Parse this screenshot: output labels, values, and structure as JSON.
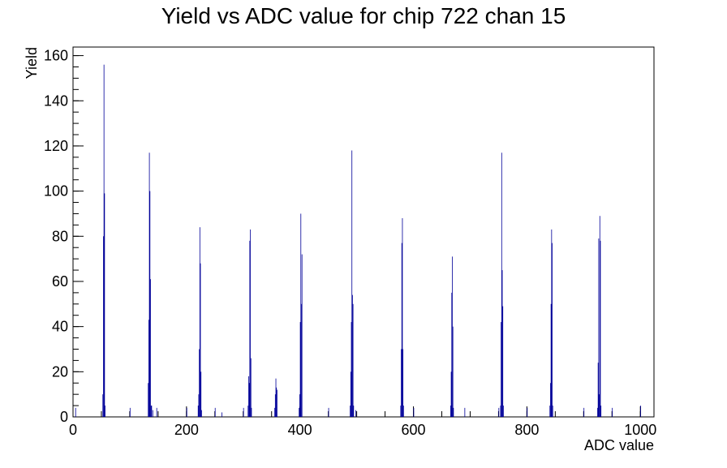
{
  "chart_data": {
    "type": "histogram",
    "title": "Yield vs ADC value for chip 722 chan 15",
    "x_label": "ADC value",
    "y_label": "Yield",
    "x": [
      4,
      52,
      53,
      54,
      55,
      56,
      100,
      132,
      133,
      134,
      135,
      136,
      137,
      138,
      140,
      147,
      200,
      220,
      221,
      222,
      223,
      224,
      225,
      226,
      250,
      262,
      300,
      308,
      309,
      310,
      311,
      312,
      313,
      314,
      355,
      356,
      357,
      358,
      359,
      398,
      399,
      400,
      401,
      402,
      403,
      450,
      488,
      489,
      490,
      491,
      492,
      493,
      494,
      498,
      577,
      578,
      579,
      580,
      581,
      582,
      600,
      665,
      666,
      667,
      668,
      669,
      670,
      690,
      750,
      753,
      754,
      755,
      756,
      757,
      758,
      800,
      840,
      841,
      842,
      843,
      844,
      845,
      900,
      924,
      925,
      926,
      927,
      928,
      929,
      930,
      950,
      1000
    ],
    "values": [
      4,
      10,
      80,
      156,
      99,
      5,
      4,
      15,
      43,
      117,
      100,
      61,
      5,
      5,
      3,
      4,
      4,
      5,
      10,
      30,
      84,
      68,
      20,
      3,
      4,
      2,
      4,
      5,
      18,
      15,
      78,
      83,
      26,
      4,
      4,
      10,
      17,
      13,
      12,
      4,
      10,
      42,
      90,
      50,
      72,
      4,
      5,
      20,
      42,
      118,
      54,
      50,
      5,
      3,
      5,
      30,
      77,
      88,
      30,
      5,
      4,
      5,
      20,
      55,
      71,
      40,
      4,
      4,
      4,
      5,
      42,
      117,
      65,
      49,
      5,
      4,
      5,
      15,
      50,
      83,
      77,
      5,
      4,
      4,
      24,
      79,
      10,
      89,
      78,
      5,
      4,
      5
    ],
    "bin_width": 1,
    "color": "#000099",
    "xlim": [
      0,
      1024
    ],
    "ylim": [
      0,
      163.8
    ],
    "xticks": [
      0,
      200,
      400,
      600,
      800,
      1000
    ],
    "yticks": [
      0,
      20,
      40,
      60,
      80,
      100,
      120,
      140,
      160
    ]
  }
}
